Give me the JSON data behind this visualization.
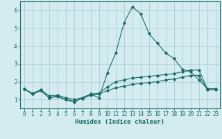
{
  "xlabel": "Humidex (Indice chaleur)",
  "background_color": "#d4ecef",
  "grid_color": "#aacdd3",
  "line_color": "#1a6b6b",
  "x_values": [
    0,
    1,
    2,
    3,
    4,
    5,
    6,
    7,
    8,
    9,
    10,
    11,
    12,
    13,
    14,
    15,
    16,
    17,
    18,
    19,
    20,
    21,
    22,
    23
  ],
  "series1": [
    1.6,
    1.3,
    1.5,
    1.1,
    1.2,
    1.0,
    0.85,
    1.1,
    1.3,
    1.1,
    2.5,
    3.6,
    5.3,
    6.2,
    5.8,
    4.7,
    4.15,
    3.6,
    3.3,
    2.7,
    2.55,
    2.1,
    1.6,
    1.6
  ],
  "series2": [
    1.6,
    1.35,
    1.55,
    1.2,
    1.25,
    1.1,
    1.0,
    1.1,
    1.3,
    1.35,
    1.7,
    2.0,
    2.1,
    2.2,
    2.25,
    2.3,
    2.35,
    2.4,
    2.45,
    2.55,
    2.65,
    2.65,
    1.6,
    1.6
  ],
  "series3": [
    1.6,
    1.3,
    1.5,
    1.1,
    1.15,
    1.0,
    0.9,
    1.05,
    1.25,
    1.3,
    1.5,
    1.65,
    1.75,
    1.85,
    1.9,
    1.95,
    2.0,
    2.1,
    2.15,
    2.25,
    2.35,
    2.35,
    1.55,
    1.55
  ],
  "ylim": [
    0.5,
    6.5
  ],
  "yticks": [
    1,
    2,
    3,
    4,
    5,
    6
  ],
  "xlim": [
    -0.5,
    23.5
  ],
  "tick_fontsize": 5.5,
  "xlabel_fontsize": 6.5
}
